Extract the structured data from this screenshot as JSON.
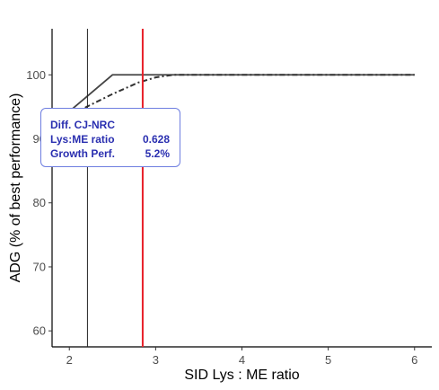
{
  "chart_data": {
    "type": "line",
    "title": "",
    "xlabel": "SID Lys : ME ratio",
    "ylabel": "ADG (% of best performance)",
    "xlim": [
      1.8,
      6.2
    ],
    "ylim": [
      57.5,
      107.2
    ],
    "xticks": [
      2,
      3,
      4,
      5,
      6
    ],
    "yticks": [
      60,
      70,
      80,
      90,
      100
    ],
    "grid": false,
    "series": [
      {
        "style": "solid",
        "color": "#444444",
        "x": [
          1.8,
          2.5,
          6.0
        ],
        "y": [
          92.0,
          100.0,
          100.0
        ]
      },
      {
        "style": "dashed",
        "color": "#333333",
        "x": [
          1.8,
          2.2,
          2.5,
          2.8,
          3.0,
          3.2,
          6.0
        ],
        "y": [
          92.0,
          95.0,
          97.0,
          98.8,
          99.6,
          100.0,
          100.0
        ]
      }
    ],
    "vlines": [
      {
        "x": 2.21,
        "color": "#222222",
        "width": 1
      },
      {
        "x": 2.85,
        "color": "#e8202a",
        "width": 2
      }
    ]
  },
  "tooltip": {
    "title": "Diff. CJ-NRC",
    "rows": [
      {
        "label": "Lys:ME ratio",
        "value": "0.628"
      },
      {
        "label": "Growth Perf.",
        "value": "5.2%"
      }
    ]
  }
}
